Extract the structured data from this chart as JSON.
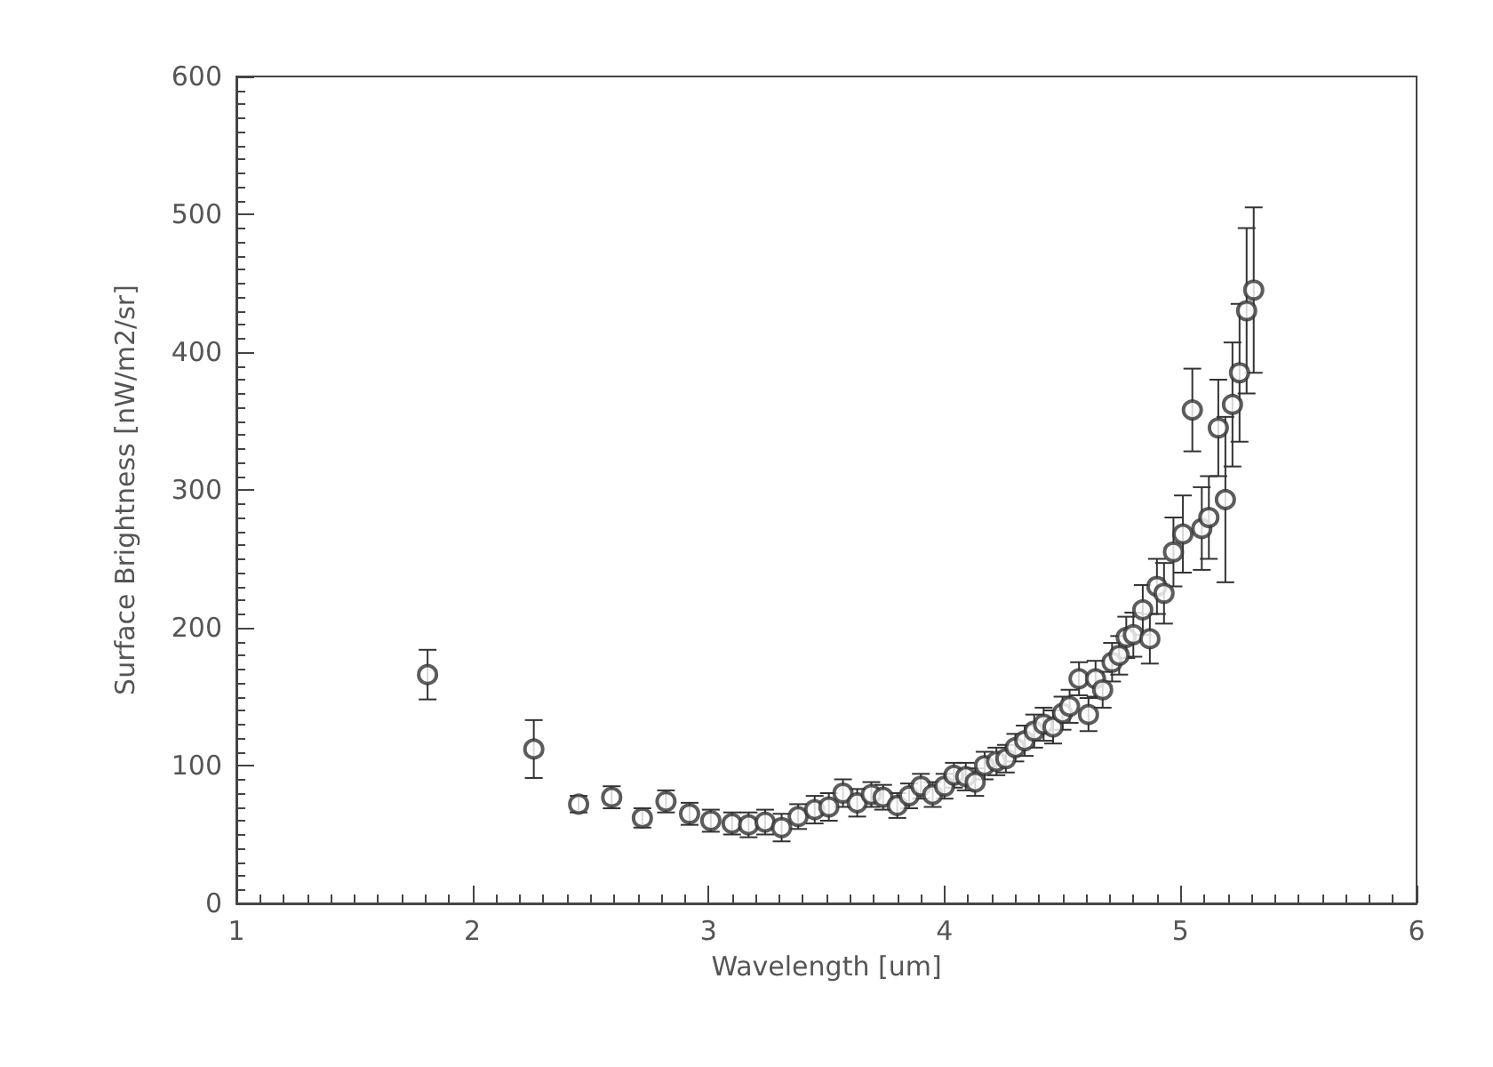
{
  "chart_data": {
    "type": "scatter",
    "xlabel": "Wavelength [um]",
    "ylabel": "Surface Brightness [nW/m2/sr]",
    "x": [
      1.81,
      2.26,
      2.45,
      2.59,
      2.72,
      2.82,
      2.92,
      3.01,
      3.1,
      3.17,
      3.24,
      3.31,
      3.38,
      3.45,
      3.51,
      3.57,
      3.63,
      3.69,
      3.74,
      3.8,
      3.85,
      3.9,
      3.95,
      4.0,
      4.04,
      4.09,
      4.13,
      4.17,
      4.22,
      4.26,
      4.3,
      4.34,
      4.38,
      4.42,
      4.46,
      4.5,
      4.53,
      4.57,
      4.61,
      4.64,
      4.67,
      4.71,
      4.74,
      4.77,
      4.8,
      4.84,
      4.87,
      4.9,
      4.93,
      4.97,
      5.01,
      5.05,
      5.09,
      5.12,
      5.16,
      5.19,
      5.22,
      5.25,
      5.28,
      5.31
    ],
    "series": [
      {
        "color": "#333333",
        "values": [
          166,
          112,
          72,
          77,
          62,
          74,
          65,
          60,
          58,
          57,
          59,
          55,
          63,
          68,
          70,
          80,
          73,
          79,
          77,
          71,
          78,
          85,
          79,
          85,
          93,
          92,
          88,
          100,
          103,
          105,
          113,
          118,
          125,
          130,
          128,
          138,
          143,
          163,
          137,
          163,
          155,
          175,
          180,
          193,
          195,
          213,
          192,
          230,
          225,
          255,
          268,
          358,
          272,
          280,
          345,
          293,
          362,
          385,
          430,
          445
        ],
        "errors": [
          18,
          21,
          6,
          8,
          7,
          8,
          8,
          8,
          8,
          9,
          9,
          10,
          9,
          10,
          10,
          10,
          10,
          9,
          9,
          9,
          9,
          9,
          9,
          9,
          9,
          10,
          10,
          10,
          10,
          10,
          10,
          11,
          12,
          12,
          12,
          12,
          12,
          12,
          12,
          13,
          13,
          14,
          14,
          15,
          16,
          18,
          18,
          20,
          22,
          25,
          28,
          30,
          30,
          30,
          35,
          60,
          45,
          50,
          60,
          60
        ]
      }
    ],
    "xlim": [
      1,
      6
    ],
    "xticks": [
      1,
      2,
      3,
      4,
      5,
      6
    ],
    "ylim": [
      0,
      600
    ],
    "yticks": [
      0,
      100,
      200,
      300,
      400,
      500,
      600
    ],
    "grid": false,
    "marker": "circle"
  }
}
